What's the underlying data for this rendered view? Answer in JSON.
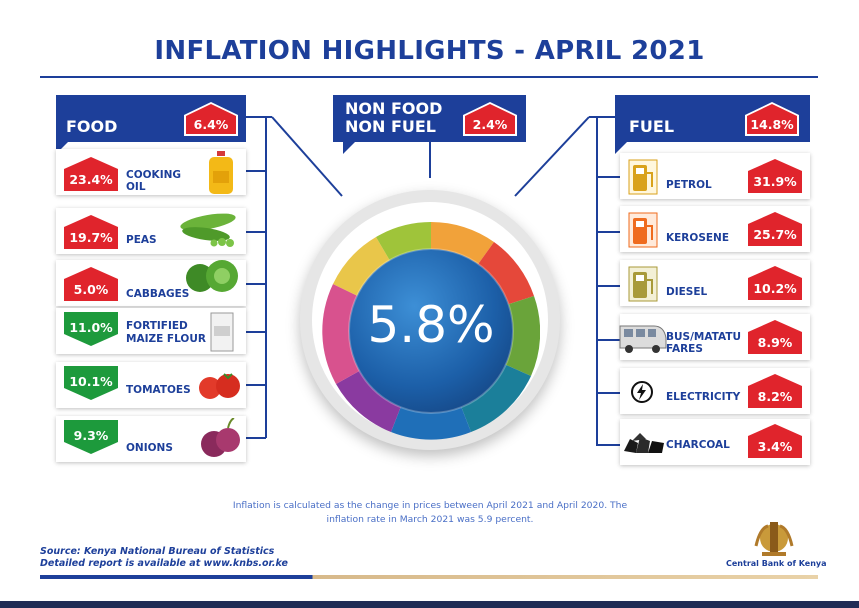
{
  "title": "INFLATION HIGHLIGHTS - APRIL 2021",
  "center_value": "5.8%",
  "food": {
    "label": "FOOD",
    "value": "6.4%",
    "items": [
      {
        "label_line1": "COOKING",
        "label_line2": "OIL",
        "value": "23.4%",
        "direction": "up",
        "icon": "cooking-oil-icon"
      },
      {
        "label_line1": "PEAS",
        "label_line2": "",
        "value": "19.7%",
        "direction": "up",
        "icon": "peas-icon"
      },
      {
        "label_line1": "CABBAGES",
        "label_line2": "",
        "value": "5.0%",
        "direction": "up",
        "icon": "cabbage-icon"
      },
      {
        "label_line1": "FORTIFIED",
        "label_line2": "MAIZE FLOUR",
        "value": "11.0%",
        "direction": "down",
        "icon": "maize-flour-icon"
      },
      {
        "label_line1": "TOMATOES",
        "label_line2": "",
        "value": "10.1%",
        "direction": "down",
        "icon": "tomato-icon"
      },
      {
        "label_line1": "ONIONS",
        "label_line2": "",
        "value": "9.3%",
        "direction": "down",
        "icon": "onion-icon"
      }
    ]
  },
  "nonfood": {
    "label_line1": "NON FOOD",
    "label_line2": "NON FUEL",
    "value": "2.4%"
  },
  "fuel": {
    "label": "FUEL",
    "value": "14.8%",
    "items": [
      {
        "label_line1": "PETROL",
        "label_line2": "",
        "value": "31.9%",
        "icon": "fuel-pump-icon"
      },
      {
        "label_line1": "KEROSENE",
        "label_line2": "",
        "value": "25.7%",
        "icon": "fuel-pump-icon"
      },
      {
        "label_line1": "DIESEL",
        "label_line2": "",
        "value": "10.2%",
        "icon": "fuel-pump-icon"
      },
      {
        "label_line1": "BUS/MATATU",
        "label_line2": "FARES",
        "value": "8.9%",
        "icon": "matatu-icon"
      },
      {
        "label_line1": "ELECTRICITY",
        "label_line2": "",
        "value": "8.2%",
        "icon": "lightning-icon"
      },
      {
        "label_line1": "CHARCOAL",
        "label_line2": "",
        "value": "3.4%",
        "icon": "charcoal-icon"
      }
    ]
  },
  "note_line1": "Inflation is calculated as the change in prices between April 2021 and April 2020. The",
  "note_line2": "inflation rate in March 2021 was 5.9 percent.",
  "source_line1": "Source: Kenya National Bureau of Statistics",
  "source_line2": "Detailed report is available at www.knbs.or.ke",
  "cbk_label": "Central Bank of Kenya",
  "colors": {
    "navy": "#1d3f9a",
    "up": "#e0242c",
    "down": "#1d9a3c",
    "petrol": "#d9a21b",
    "kerosene": "#ef6b1e",
    "diesel": "#a89a3a"
  }
}
